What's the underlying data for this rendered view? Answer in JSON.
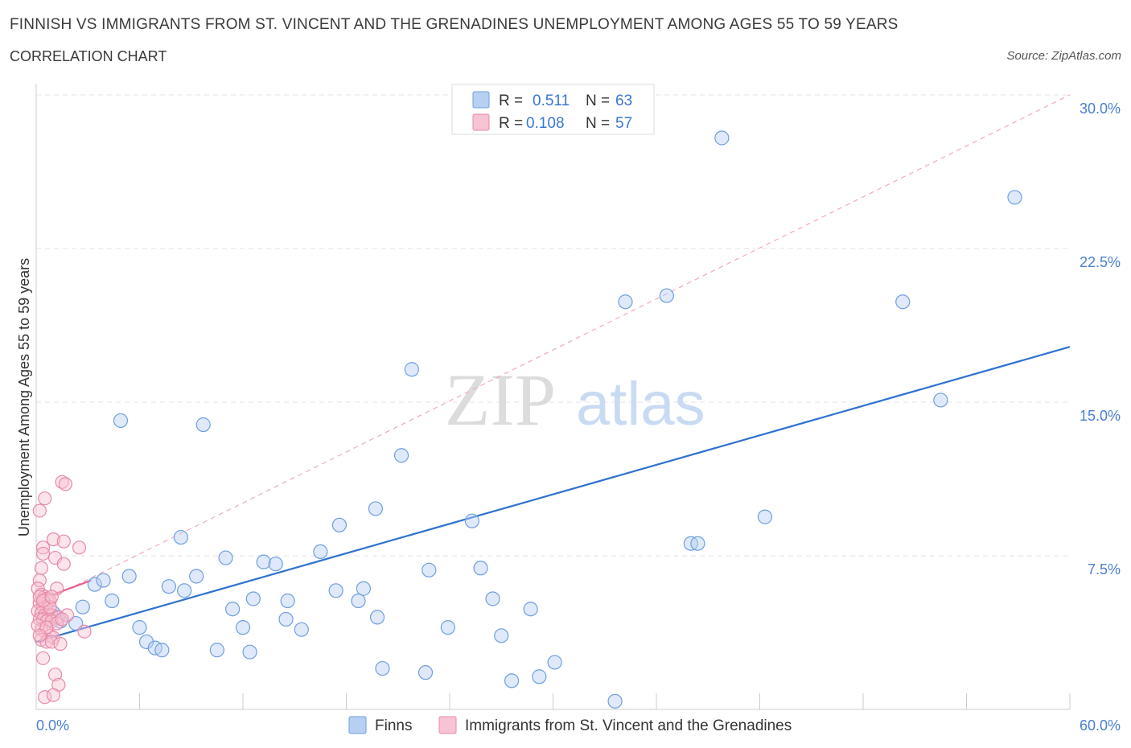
{
  "title": "FINNISH VS IMMIGRANTS FROM ST. VINCENT AND THE GRENADINES UNEMPLOYMENT AMONG AGES 55 TO 59 YEARS",
  "subtitle": "CORRELATION CHART",
  "source": "Source: ZipAtlas.com",
  "watermark": {
    "zip": "ZIP",
    "atlas": "atlas"
  },
  "legend": {
    "r_label": "R =",
    "n_label": "N =",
    "rows": [
      {
        "r": "0.511",
        "n": "63"
      },
      {
        "r": "0.108",
        "n": "57"
      }
    ]
  },
  "colors": {
    "finns_fill": "#b7cff2",
    "finns_stroke": "#6e9fe0",
    "finns_line": "#2f72cf",
    "svg_fill": "#f8c3d3",
    "svg_stroke": "#e889a8",
    "svg_line": "#e4608b",
    "axis_label": "#4a7fd1"
  },
  "chart_data": {
    "type": "scatter",
    "title": "FINNISH VS IMMIGRANTS FROM ST. VINCENT AND THE GRENADINES UNEMPLOYMENT AMONG AGES 55 TO 59 YEARS",
    "xlabel": "",
    "ylabel": "Unemployment Among Ages 55 to 59 years",
    "xlim": [
      0,
      60
    ],
    "ylim": [
      0,
      30
    ],
    "x_tick_labels": [
      "0.0%",
      "60.0%"
    ],
    "y_tick_labels": [
      "30.0%",
      "22.5%",
      "15.0%",
      "7.5%"
    ],
    "y_ticks": [
      30,
      22.5,
      15,
      7.5
    ],
    "grid": true,
    "series": [
      {
        "name": "Finns",
        "points": [
          [
            24.9,
            28.7
          ],
          [
            39.8,
            27.9
          ],
          [
            56.8,
            25.0
          ],
          [
            34.2,
            19.9
          ],
          [
            36.6,
            20.2
          ],
          [
            50.3,
            19.9
          ],
          [
            21.8,
            16.6
          ],
          [
            52.5,
            15.1
          ],
          [
            4.9,
            14.1
          ],
          [
            9.7,
            13.9
          ],
          [
            21.2,
            12.4
          ],
          [
            19.7,
            9.8
          ],
          [
            17.6,
            9.0
          ],
          [
            25.3,
            9.2
          ],
          [
            42.3,
            9.4
          ],
          [
            8.4,
            8.4
          ],
          [
            38.0,
            8.1
          ],
          [
            38.4,
            8.1
          ],
          [
            11.0,
            7.4
          ],
          [
            13.2,
            7.2
          ],
          [
            13.9,
            7.1
          ],
          [
            16.5,
            7.7
          ],
          [
            22.8,
            6.8
          ],
          [
            25.8,
            6.9
          ],
          [
            3.4,
            6.1
          ],
          [
            5.4,
            6.5
          ],
          [
            3.9,
            6.3
          ],
          [
            7.7,
            6.0
          ],
          [
            9.3,
            6.5
          ],
          [
            8.6,
            5.8
          ],
          [
            17.4,
            5.8
          ],
          [
            18.7,
            5.3
          ],
          [
            19.0,
            5.9
          ],
          [
            12.6,
            5.4
          ],
          [
            14.6,
            5.3
          ],
          [
            2.7,
            5.0
          ],
          [
            4.4,
            5.3
          ],
          [
            11.4,
            4.9
          ],
          [
            26.5,
            5.4
          ],
          [
            28.7,
            4.9
          ],
          [
            1.0,
            4.7
          ],
          [
            1.4,
            4.3
          ],
          [
            2.3,
            4.2
          ],
          [
            6.0,
            4.0
          ],
          [
            12.0,
            4.0
          ],
          [
            14.5,
            4.4
          ],
          [
            15.4,
            3.9
          ],
          [
            19.8,
            4.5
          ],
          [
            23.9,
            4.0
          ],
          [
            27.0,
            3.6
          ],
          [
            6.4,
            3.3
          ],
          [
            6.9,
            3.0
          ],
          [
            7.3,
            2.9
          ],
          [
            10.5,
            2.9
          ],
          [
            12.4,
            2.8
          ],
          [
            20.1,
            2.0
          ],
          [
            22.6,
            1.8
          ],
          [
            27.6,
            1.4
          ],
          [
            29.2,
            1.6
          ],
          [
            30.1,
            2.3
          ],
          [
            33.6,
            0.4
          ],
          [
            1.2,
            4.5
          ],
          [
            0.8,
            4.4
          ]
        ],
        "trend": {
          "x": [
            0,
            60
          ],
          "y": [
            3.3,
            17.7
          ]
        }
      },
      {
        "name": "Immigrants from St. Vincent and the Grenadines",
        "points": [
          [
            1.5,
            11.1
          ],
          [
            1.7,
            11.0
          ],
          [
            0.5,
            10.3
          ],
          [
            0.2,
            9.7
          ],
          [
            1.0,
            8.3
          ],
          [
            1.6,
            8.2
          ],
          [
            0.4,
            7.9
          ],
          [
            0.4,
            7.6
          ],
          [
            2.5,
            7.9
          ],
          [
            1.1,
            7.4
          ],
          [
            1.6,
            7.1
          ],
          [
            0.3,
            6.9
          ],
          [
            0.2,
            6.3
          ],
          [
            0.1,
            5.9
          ],
          [
            1.2,
            5.9
          ],
          [
            0.3,
            5.6
          ],
          [
            0.5,
            5.5
          ],
          [
            0.6,
            5.4
          ],
          [
            0.7,
            5.3
          ],
          [
            0.8,
            5.3
          ],
          [
            0.2,
            5.2
          ],
          [
            0.4,
            5.0
          ],
          [
            0.6,
            4.9
          ],
          [
            0.1,
            4.8
          ],
          [
            0.3,
            4.7
          ],
          [
            0.5,
            4.6
          ],
          [
            0.7,
            4.6
          ],
          [
            0.9,
            4.6
          ],
          [
            1.3,
            4.5
          ],
          [
            1.8,
            4.6
          ],
          [
            0.2,
            4.4
          ],
          [
            0.4,
            4.4
          ],
          [
            0.6,
            4.3
          ],
          [
            0.9,
            4.3
          ],
          [
            1.2,
            4.2
          ],
          [
            0.3,
            3.9
          ],
          [
            0.5,
            3.8
          ],
          [
            0.8,
            3.6
          ],
          [
            1.0,
            3.5
          ],
          [
            2.8,
            3.8
          ],
          [
            0.3,
            3.4
          ],
          [
            0.6,
            3.3
          ],
          [
            0.9,
            3.3
          ],
          [
            1.4,
            3.2
          ],
          [
            0.4,
            2.5
          ],
          [
            1.1,
            1.7
          ],
          [
            1.3,
            1.2
          ],
          [
            0.5,
            0.6
          ],
          [
            1.0,
            0.7
          ],
          [
            0.2,
            5.5
          ],
          [
            0.8,
            5.0
          ],
          [
            0.1,
            4.1
          ],
          [
            0.6,
            4.0
          ],
          [
            0.2,
            3.6
          ],
          [
            1.5,
            4.4
          ],
          [
            0.4,
            5.3
          ],
          [
            0.9,
            5.5
          ]
        ],
        "trend": {
          "x": [
            0,
            3.2
          ],
          "y": [
            5.3,
            6.3
          ]
        },
        "trend_extension": {
          "x": [
            0,
            60
          ],
          "y": [
            5.1,
            30.0
          ]
        }
      }
    ],
    "legend_placement": "bottom-center"
  }
}
